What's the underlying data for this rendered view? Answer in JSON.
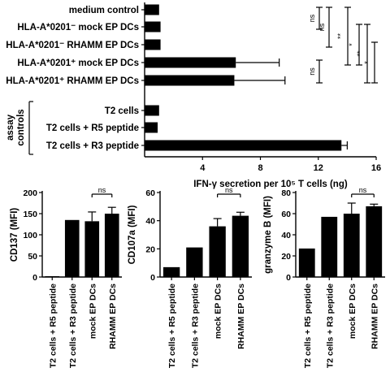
{
  "chart_data": [
    {
      "type": "bar",
      "orientation": "horizontal",
      "categories": [
        "medium control",
        "HLA-A*0201⁻ mock EP DCs",
        "HLA-A*0201⁻ RHAMM EP DCs",
        "HLA-A*0201⁺ mock EP DCs",
        "HLA-A*0201⁺ RHAMM EP DCs",
        "T2 cells",
        "T2 cells + R5 peptide",
        "T2 cells + R3 peptide"
      ],
      "values": [
        1.0,
        1.1,
        1.1,
        6.3,
        6.2,
        1.0,
        0.9,
        13.6
      ],
      "errors": [
        0,
        0,
        0,
        3.0,
        3.5,
        0,
        0,
        0.4
      ],
      "group_label": [
        "assay",
        "controls"
      ],
      "xlabel": "IFN-γ secretion per 10⁵ T cells (ng)",
      "xlim": [
        0,
        16
      ],
      "xticks": [
        4,
        8,
        12,
        16
      ],
      "significance": [
        {
          "rows": [
            3,
            4
          ],
          "label": "ns"
        },
        {
          "rows": [
            0,
            1
          ],
          "label": "ns"
        },
        {
          "rows": [
            0,
            2
          ],
          "label": "ns"
        },
        {
          "rows": [
            0,
            3
          ],
          "label": "**"
        },
        {
          "rows": [
            1,
            3
          ],
          "label": "*"
        },
        {
          "rows": [
            1,
            4
          ],
          "label": "**"
        },
        {
          "rows": [
            2,
            4
          ],
          "label": "*"
        }
      ]
    },
    {
      "type": "bar",
      "categories": [
        "T2 cells + R5 peptide",
        "T2 cells + R3 peptide",
        "mock EP DCs",
        "RHAMM EP DCs"
      ],
      "values": [
        2,
        135,
        132,
        150
      ],
      "errors": [
        0,
        0,
        22,
        15
      ],
      "ylabel": "CD137 (MFI)",
      "ylim": [
        0,
        200
      ],
      "yticks": [
        0,
        50,
        100,
        150,
        200
      ],
      "significance": [
        {
          "between": [
            2,
            3
          ],
          "label": "ns"
        }
      ]
    },
    {
      "type": "bar",
      "categories": [
        "T2 cells + R5 peptide",
        "T2 cells + R3 peptide",
        "mock EP DCs",
        "RHAMM EP DCs"
      ],
      "values": [
        7,
        21,
        36,
        43.5
      ],
      "errors": [
        0,
        0,
        5.5,
        2.5
      ],
      "ylabel": "CD107a (MFI)",
      "ylim": [
        0,
        60
      ],
      "yticks": [
        0,
        20,
        40,
        60
      ],
      "significance": [
        {
          "between": [
            2,
            3
          ],
          "label": "ns"
        }
      ]
    },
    {
      "type": "bar",
      "categories": [
        "T2 cells + R5 peptide",
        "T2 cells + R3 peptide",
        "mock EP DCs",
        "RHAMM EP DCs"
      ],
      "values": [
        27,
        57,
        60,
        67
      ],
      "errors": [
        0,
        0,
        10,
        2
      ],
      "ylabel": "granzyme B (MFI)",
      "ylim": [
        0,
        80
      ],
      "yticks": [
        0,
        20,
        40,
        60,
        80
      ],
      "significance": [
        {
          "between": [
            2,
            3
          ],
          "label": "ns"
        }
      ]
    }
  ]
}
